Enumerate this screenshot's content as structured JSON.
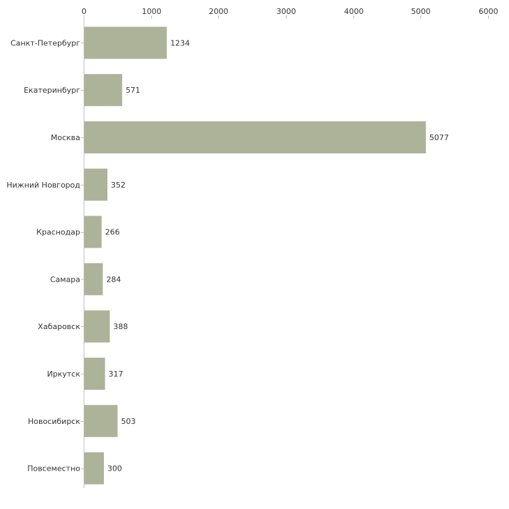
{
  "chart_data": {
    "type": "bar",
    "orientation": "horizontal",
    "title": "",
    "xlabel": "",
    "ylabel": "",
    "xlim": [
      0,
      6000
    ],
    "xticks": [
      0,
      1000,
      2000,
      3000,
      4000,
      5000,
      6000
    ],
    "grid": false,
    "legend": "none",
    "bar_color": "#adb398",
    "categories": [
      "Санкт-Петербург",
      "Екатеринбург",
      "Москва",
      "Нижний Новгород",
      "Краснодар",
      "Самара",
      "Хабаровск",
      "Иркутск",
      "Новосибирск",
      "Повсеместно"
    ],
    "values": [
      1234,
      571,
      5077,
      352,
      266,
      284,
      388,
      317,
      503,
      300
    ]
  }
}
